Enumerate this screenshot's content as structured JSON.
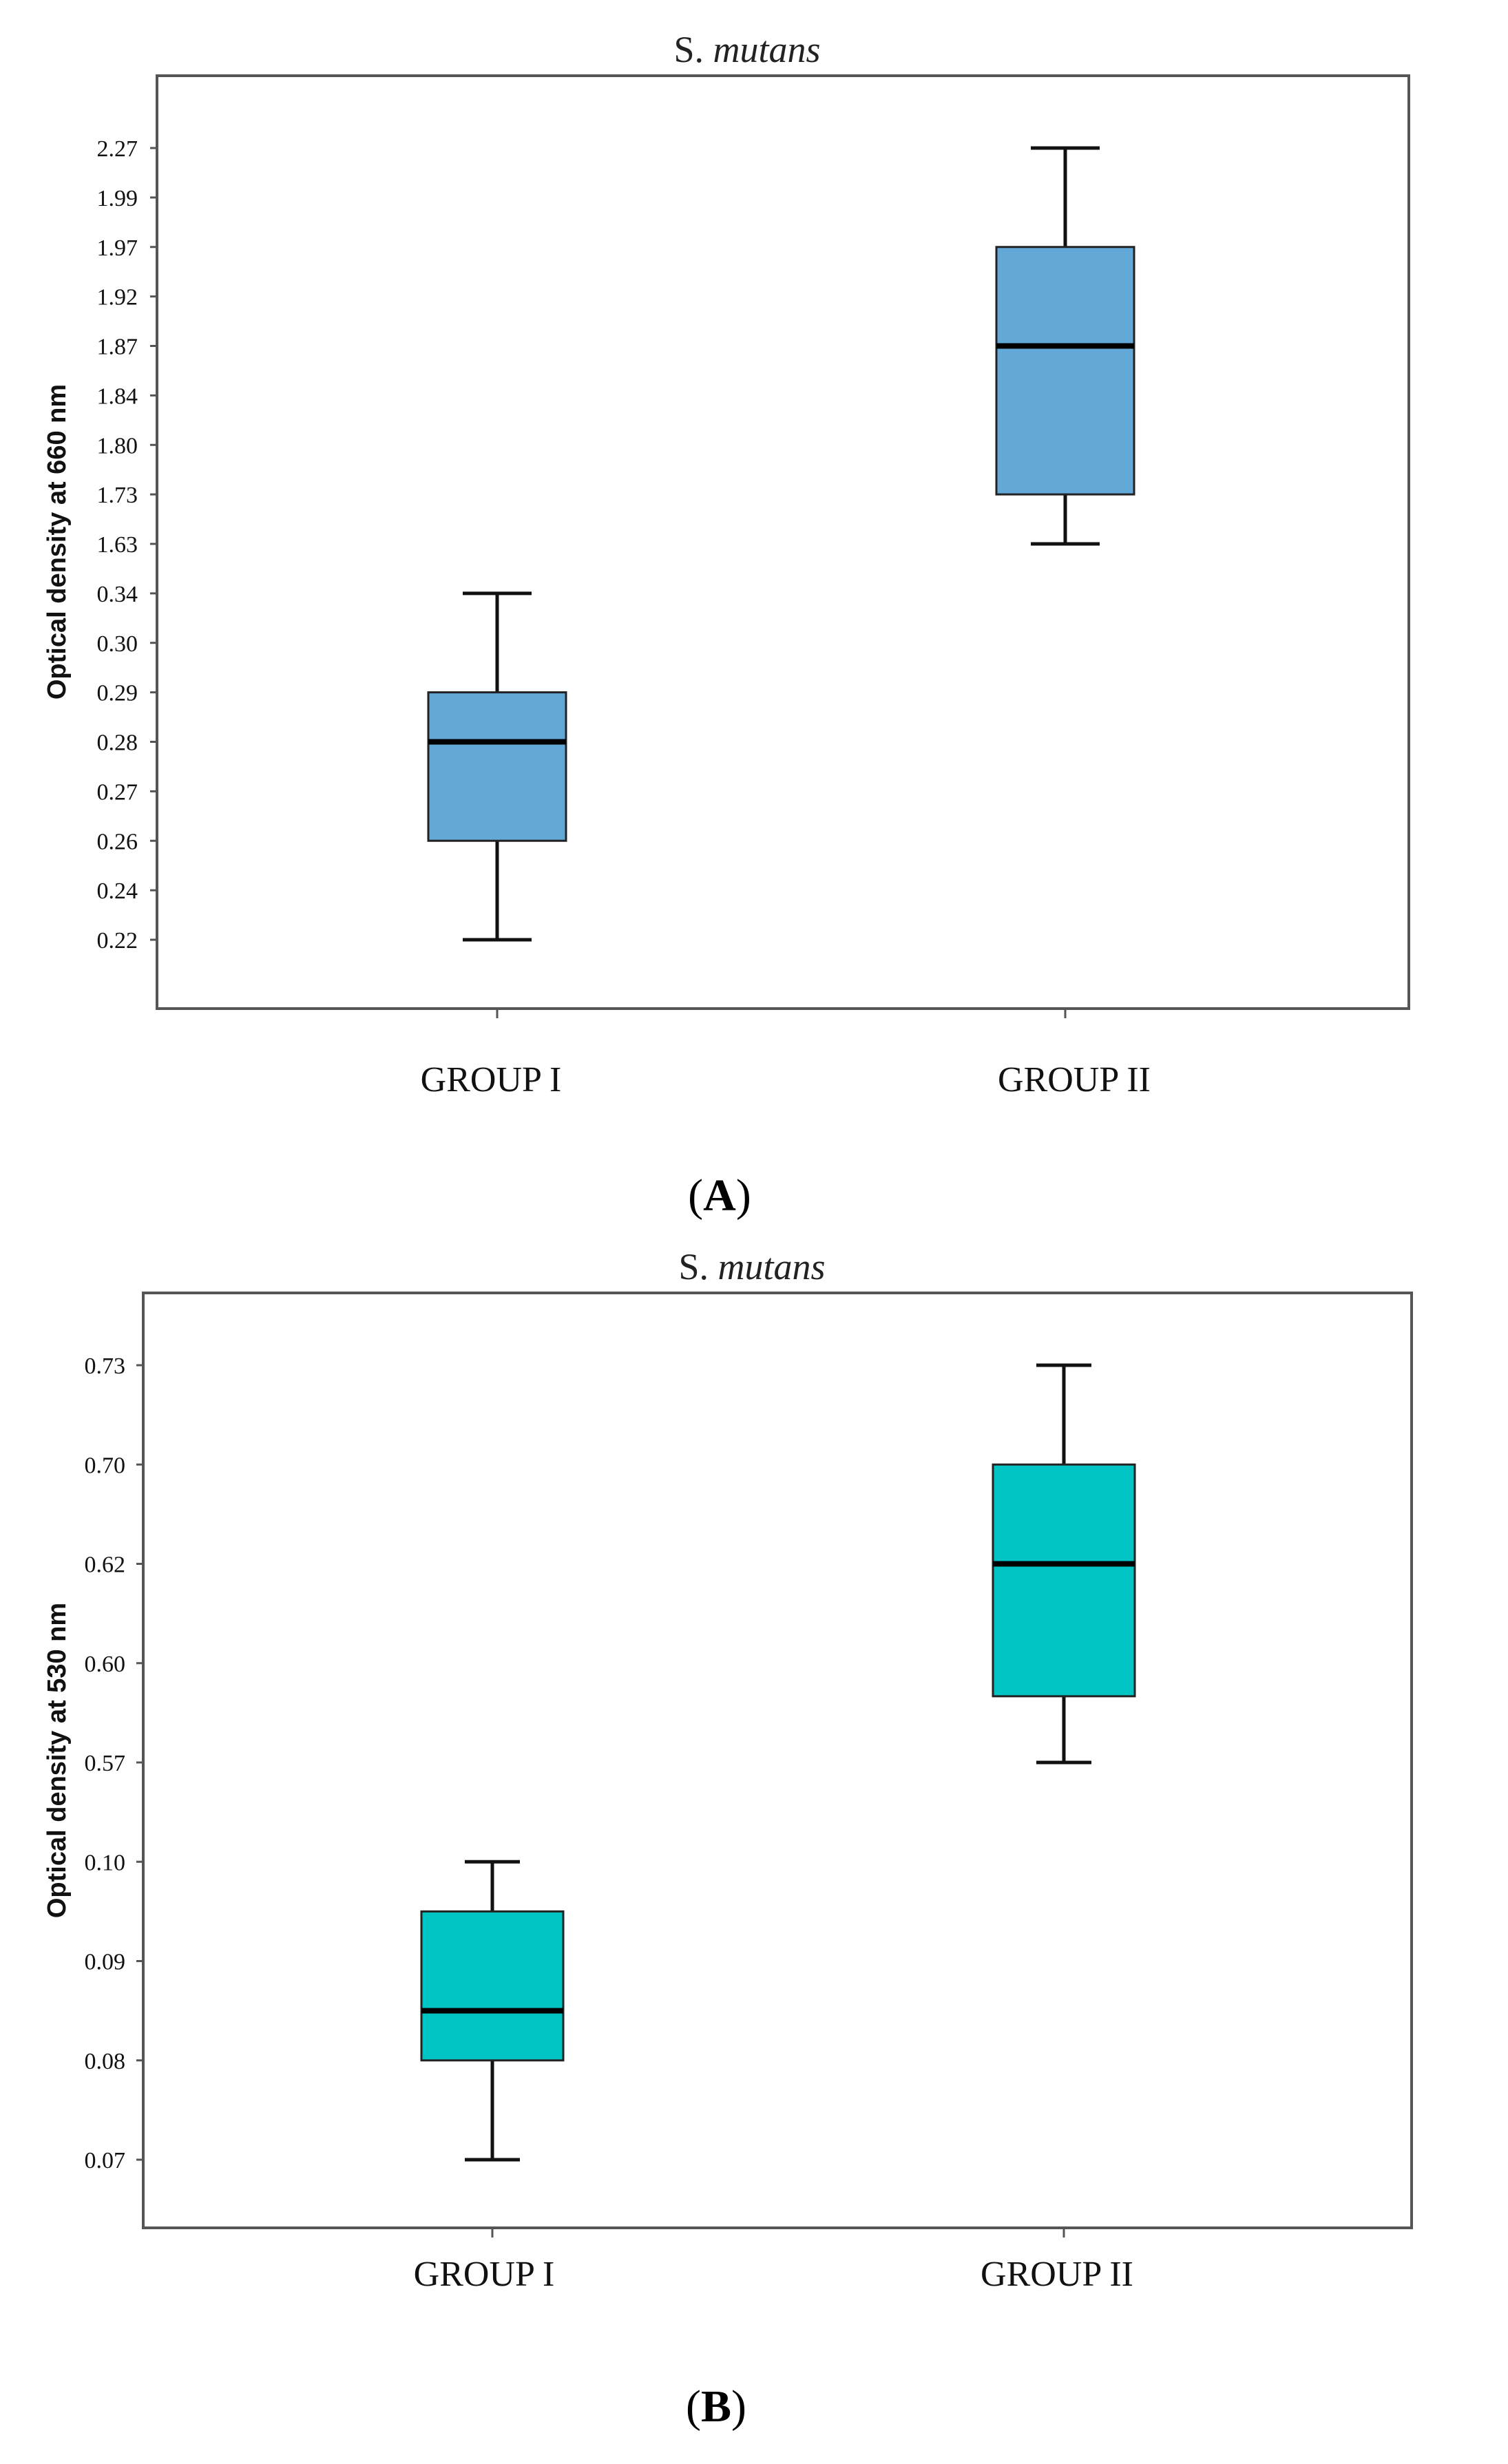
{
  "chart_data": [
    {
      "type": "box",
      "title_prefix": "S.",
      "title_italic": "mutans",
      "ylabel": "Optical density at 660 nm",
      "panel_label": "A",
      "box_color": "#62a9d8",
      "ticks": [
        "0.22",
        "0.24",
        "0.26",
        "0.27",
        "0.28",
        "0.29",
        "0.30",
        "0.34",
        "1.63",
        "1.73",
        "1.80",
        "1.84",
        "1.87",
        "1.92",
        "1.97",
        "1.99",
        "2.27"
      ],
      "groups": [
        {
          "name": "GROUP I",
          "min": "0.22",
          "q1": "0.26",
          "median": "0.28",
          "q3": "0.29",
          "max": "0.34"
        },
        {
          "name": "GROUP II",
          "min": "1.63",
          "q1": "1.73",
          "median": "1.87",
          "q3": "1.97",
          "max": "2.27"
        }
      ]
    },
    {
      "type": "box",
      "title_prefix": "S.",
      "title_italic": "mutans",
      "ylabel": "Optical density at 530 nm",
      "panel_label": "B",
      "box_color": "#00c4c4",
      "ticks": [
        "0.07",
        "0.08",
        "0.09",
        "0.10",
        "0.57",
        "0.60",
        "0.62",
        "0.70",
        "0.73"
      ],
      "groups": [
        {
          "name": "GROUP I",
          "min": "0.07",
          "q1": "0.08",
          "median": "0.085",
          "q3": "0.095",
          "max": "0.10"
        },
        {
          "name": "GROUP II",
          "min": "0.57",
          "q1": "0.59",
          "median": "0.62",
          "q3": "0.70",
          "max": "0.73"
        }
      ]
    }
  ]
}
